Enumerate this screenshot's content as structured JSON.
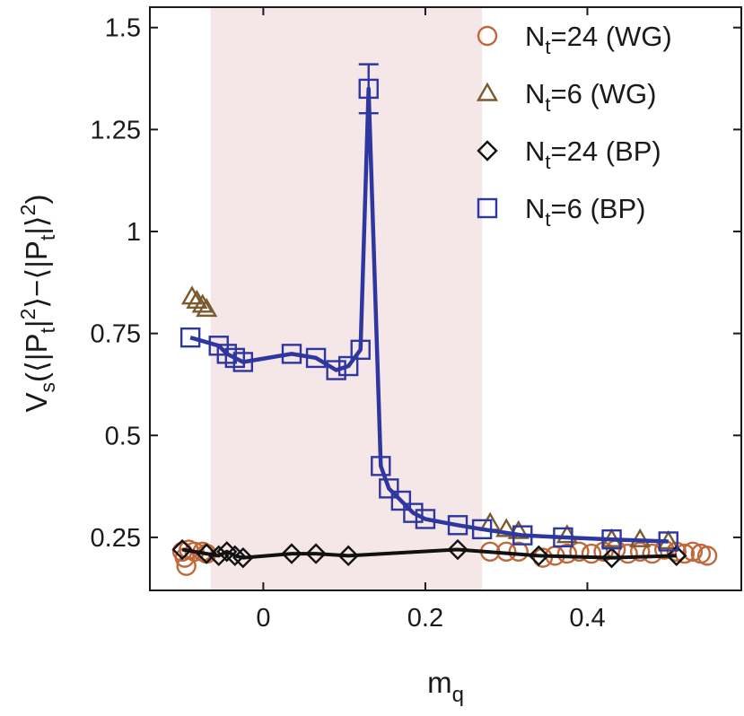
{
  "chart_data": {
    "type": "line",
    "xlabel": "m",
    "xlabel_sub": "q",
    "ylabel": "V_s(⟨|P_t|^2⟩−⟨|P_t|⟩^2)",
    "xlim": [
      -0.14,
      0.59
    ],
    "ylim": [
      0.12,
      1.55
    ],
    "x_ticks": [
      0,
      0.2,
      0.4
    ],
    "x_tick_labels": [
      "0",
      "0.2",
      "0.4"
    ],
    "y_ticks": [
      0.25,
      0.5,
      0.75,
      1,
      1.25,
      1.5
    ],
    "y_tick_labels": [
      "0.25",
      "0.5",
      "0.75",
      "1",
      "1.25",
      "1.5"
    ],
    "shaded_region": {
      "x_from": -0.065,
      "x_to": 0.27,
      "color": "#f5e6e8"
    },
    "legend_position": "top-right",
    "series": [
      {
        "name": "N_t=24 (WG)",
        "legend_main": "N",
        "legend_sub": "t",
        "legend_rest": "=24 (WG)",
        "marker": "circle",
        "color": "#c0683a",
        "line": false,
        "points": [
          [
            -0.095,
            0.18
          ],
          [
            -0.097,
            0.2
          ],
          [
            -0.1,
            0.215
          ],
          [
            -0.092,
            0.22
          ],
          [
            -0.085,
            0.215
          ],
          [
            -0.075,
            0.215
          ],
          [
            -0.07,
            0.21
          ],
          [
            0.28,
            0.215
          ],
          [
            0.3,
            0.215
          ],
          [
            0.315,
            0.215
          ],
          [
            0.345,
            0.2
          ],
          [
            0.36,
            0.205
          ],
          [
            0.375,
            0.21
          ],
          [
            0.39,
            0.215
          ],
          [
            0.405,
            0.21
          ],
          [
            0.42,
            0.215
          ],
          [
            0.435,
            0.22
          ],
          [
            0.45,
            0.21
          ],
          [
            0.465,
            0.215
          ],
          [
            0.48,
            0.21
          ],
          [
            0.495,
            0.22
          ],
          [
            0.51,
            0.215
          ],
          [
            0.52,
            0.21
          ],
          [
            0.53,
            0.215
          ],
          [
            0.54,
            0.21
          ],
          [
            0.548,
            0.205
          ]
        ]
      },
      {
        "name": "N_t=6 (WG)",
        "legend_main": "N",
        "legend_sub": "t",
        "legend_rest": "=6 (WG)",
        "marker": "triangle",
        "color": "#7a5a2e",
        "line": false,
        "points": [
          [
            -0.088,
            0.84
          ],
          [
            -0.082,
            0.83
          ],
          [
            -0.075,
            0.82
          ],
          [
            -0.07,
            0.81
          ],
          [
            0.28,
            0.285
          ],
          [
            0.3,
            0.27
          ],
          [
            0.315,
            0.265
          ],
          [
            0.375,
            0.255
          ],
          [
            0.43,
            0.245
          ],
          [
            0.465,
            0.245
          ],
          [
            0.5,
            0.24
          ]
        ]
      },
      {
        "name": "N_t=24 (BP)",
        "legend_main": "N",
        "legend_sub": "t",
        "legend_rest": "=24 (BP)",
        "marker": "diamond",
        "color": "#111111",
        "line": true,
        "line_width": 4,
        "points": [
          [
            -0.1,
            0.22
          ],
          [
            -0.07,
            0.21
          ],
          [
            -0.055,
            0.205
          ],
          [
            -0.045,
            0.215
          ],
          [
            -0.035,
            0.205
          ],
          [
            -0.025,
            0.2
          ],
          [
            0.035,
            0.21
          ],
          [
            0.065,
            0.21
          ],
          [
            0.105,
            0.205
          ],
          [
            0.24,
            0.22
          ],
          [
            0.34,
            0.205
          ],
          [
            0.43,
            0.2
          ],
          [
            0.51,
            0.205
          ]
        ]
      },
      {
        "name": "N_t=6 (BP)",
        "legend_main": "N",
        "legend_sub": "t",
        "legend_rest": "=6 (BP)",
        "marker": "square",
        "color": "#2e36a0",
        "line": true,
        "line_width": 4.5,
        "points": [
          [
            -0.09,
            0.74
          ],
          [
            -0.055,
            0.72
          ],
          [
            -0.045,
            0.7
          ],
          [
            -0.035,
            0.69
          ],
          [
            -0.025,
            0.68
          ],
          [
            0.035,
            0.7
          ],
          [
            0.065,
            0.69
          ],
          [
            0.09,
            0.66
          ],
          [
            0.105,
            0.67
          ],
          [
            0.12,
            0.71
          ],
          [
            0.13,
            1.35
          ],
          [
            0.145,
            0.425
          ],
          [
            0.155,
            0.37
          ],
          [
            0.17,
            0.34
          ],
          [
            0.185,
            0.31
          ],
          [
            0.2,
            0.295
          ],
          [
            0.24,
            0.28
          ],
          [
            0.27,
            0.27
          ],
          [
            0.32,
            0.255
          ],
          [
            0.37,
            0.25
          ],
          [
            0.43,
            0.245
          ],
          [
            0.5,
            0.24
          ]
        ],
        "error_bars": [
          {
            "x": 0.13,
            "low": 1.29,
            "high": 1.41
          }
        ]
      }
    ]
  }
}
